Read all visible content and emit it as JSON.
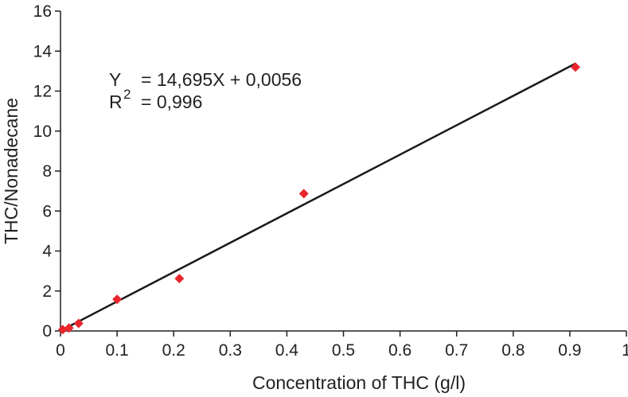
{
  "chart_data": {
    "type": "scatter",
    "title": "",
    "xlabel": "Concentration of THC (g/l)",
    "ylabel": "THC/Nonadecane",
    "xlim": [
      0,
      1
    ],
    "ylim": [
      0,
      16
    ],
    "x_ticks": [
      "0",
      "0.1",
      "0.2",
      "0.3",
      "0.4",
      "0.5",
      "0.6",
      "0.7",
      "0.8",
      "0.9",
      "1"
    ],
    "y_ticks": [
      "0",
      "2",
      "4",
      "6",
      "8",
      "10",
      "12",
      "14",
      "16"
    ],
    "grid": false,
    "marker_color": "#e8262c",
    "line_color": "#1a1a1a",
    "points": [
      {
        "x": 0.004,
        "y": 0.07
      },
      {
        "x": 0.015,
        "y": 0.15
      },
      {
        "x": 0.032,
        "y": 0.38
      },
      {
        "x": 0.1,
        "y": 1.58
      },
      {
        "x": 0.21,
        "y": 2.62
      },
      {
        "x": 0.43,
        "y": 6.87
      },
      {
        "x": 0.91,
        "y": 13.2
      }
    ],
    "trendline": {
      "slope": 14.695,
      "intercept": 0.0056,
      "x_range": [
        0,
        0.91
      ]
    },
    "annotations": {
      "eq_var": "Y",
      "eq_text": "= 14,695X + 0,0056",
      "r2_var": "R",
      "r2_sup": "2",
      "r2_text": "= 0,996"
    }
  }
}
